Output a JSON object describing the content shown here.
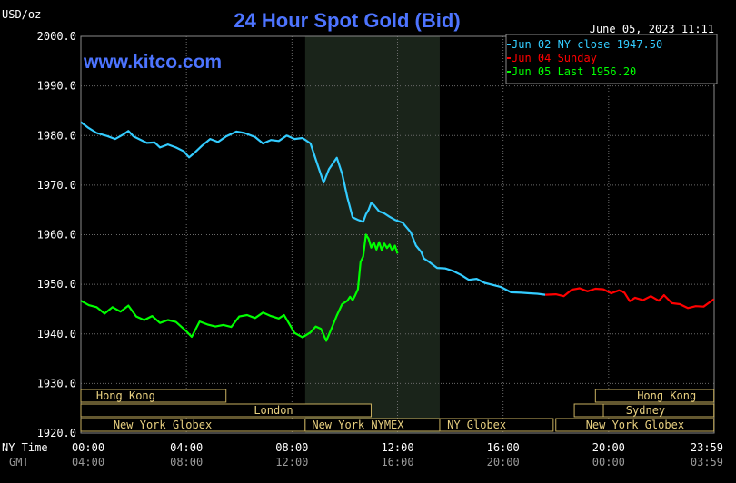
{
  "chart_data": {
    "type": "line",
    "title": "24 Hour Spot Gold (Bid)",
    "ylabel": "USD/oz",
    "datetime": "June 05, 2023 11:11",
    "watermark": "www.kitco.com",
    "ylim": [
      1920,
      2000
    ],
    "yticks": [
      1920,
      1930,
      1940,
      1950,
      1960,
      1970,
      1980,
      1990,
      2000
    ],
    "ytick_labels": [
      "1920.0",
      "1930.0",
      "1940.0",
      "1950.0",
      "1960.0",
      "1970.0",
      "1980.0",
      "1990.0",
      "2000.0"
    ],
    "xlim_hours": [
      0,
      24
    ],
    "xticks_hours": [
      0,
      4,
      8,
      12,
      16,
      20,
      24
    ],
    "x_row_labels": {
      "ny": "NY Time",
      "gmt": "GMT"
    },
    "ny_time_labels": [
      "00:00",
      "04:00",
      "08:00",
      "12:00",
      "16:00",
      "20:00",
      "23:59"
    ],
    "gmt_labels": [
      "04:00",
      "08:00",
      "12:00",
      "16:00",
      "20:00",
      "00:00",
      "03:59"
    ],
    "grid": true,
    "legend": {
      "position": "top-right",
      "entries": [
        {
          "label": "Jun 02 NY close 1947.50",
          "color": "#33ccff"
        },
        {
          "label": "Jun 04 Sunday",
          "color": "#ff0000"
        },
        {
          "label": "Jun 05 Last 1956.20",
          "color": "#00ff00"
        }
      ]
    },
    "shaded_session_hours": [
      8.5,
      13.6
    ],
    "sessions": [
      {
        "label": "Hong Kong",
        "segments": [
          [
            0,
            5.5
          ],
          [
            19.5,
            23.99
          ]
        ],
        "label_at": [
          1.7,
          22.2
        ],
        "row": 0
      },
      {
        "label": "London",
        "segments": [
          [
            0,
            11.0
          ],
          [
            18.7,
            23.99
          ]
        ],
        "label_at": [
          7.3
        ],
        "row": 1
      },
      {
        "label": "New York Globex",
        "segments": [
          [
            0,
            8.5
          ],
          [
            18.0,
            23.99
          ]
        ],
        "label_at": [
          3.1,
          21.0
        ],
        "row": 2
      },
      {
        "label": "New York NYMEX",
        "segments": [
          [
            8.5,
            13.6
          ]
        ],
        "label_at": [
          10.5
        ],
        "row": 2
      },
      {
        "label": "NY Globex",
        "segments": [
          [
            13.6,
            17.9
          ]
        ],
        "label_at": [
          15.0
        ],
        "row": 2
      },
      {
        "label": "Sydney",
        "segments": [
          [
            19.8,
            23.99
          ]
        ],
        "label_at": [
          21.4
        ],
        "row": 1
      }
    ],
    "series": [
      {
        "name": "Jun 02 NY close 1947.50",
        "color": "#33ccff",
        "x": [
          0,
          0.3,
          0.6,
          1.0,
          1.3,
          1.6,
          1.8,
          2.0,
          2.2,
          2.5,
          2.8,
          3.0,
          3.3,
          3.6,
          3.9,
          4.1,
          4.3,
          4.6,
          4.9,
          5.2,
          5.5,
          5.9,
          6.2,
          6.6,
          6.9,
          7.2,
          7.5,
          7.8,
          8.1,
          8.4,
          8.7,
          8.9,
          9.0,
          9.2,
          9.4,
          9.7,
          9.9,
          10.1,
          10.3,
          10.5,
          10.7,
          10.8,
          10.9,
          11.0,
          11.1,
          11.3,
          11.5,
          11.7,
          11.9,
          12.2,
          12.5,
          12.7,
          12.9,
          13.0,
          13.2,
          13.5,
          13.8,
          14.1,
          14.4,
          14.7,
          15.0,
          15.3,
          15.6,
          15.9,
          16.3,
          16.7,
          17.0,
          17.3,
          17.6
        ],
        "y": [
          1982.7,
          1981.5,
          1980.5,
          1979.9,
          1979.3,
          1980.2,
          1980.9,
          1979.8,
          1979.3,
          1978.5,
          1978.6,
          1977.6,
          1978.2,
          1977.6,
          1976.8,
          1975.6,
          1976.5,
          1978.0,
          1979.3,
          1978.7,
          1979.8,
          1980.8,
          1980.5,
          1979.7,
          1978.4,
          1979.1,
          1978.9,
          1980.0,
          1979.3,
          1979.5,
          1978.4,
          1975.2,
          1973.6,
          1970.5,
          1973.2,
          1975.5,
          1972.3,
          1967.5,
          1963.5,
          1963.0,
          1962.6,
          1964.1,
          1965.0,
          1966.4,
          1966.0,
          1964.7,
          1964.3,
          1963.6,
          1963.0,
          1962.4,
          1960.5,
          1957.8,
          1956.5,
          1955.2,
          1954.5,
          1953.3,
          1953.2,
          1952.7,
          1951.9,
          1950.9,
          1951.1,
          1950.3,
          1949.9,
          1949.5,
          1948.4,
          1948.3,
          1948.2,
          1948.1,
          1947.9
        ]
      },
      {
        "name": "Jun 04 Sunday",
        "color": "#ff0000",
        "x": [
          17.6,
          18.0,
          18.3,
          18.6,
          18.9,
          19.2,
          19.5,
          19.8,
          20.1,
          20.4,
          20.6,
          20.8,
          21.0,
          21.3,
          21.6,
          21.9,
          22.1,
          22.4,
          22.7,
          23.0,
          23.3,
          23.6,
          23.99
        ],
        "y": [
          1947.9,
          1948.0,
          1947.6,
          1948.9,
          1949.2,
          1948.6,
          1949.1,
          1949.0,
          1948.2,
          1948.8,
          1948.3,
          1946.6,
          1947.3,
          1946.8,
          1947.6,
          1946.7,
          1947.8,
          1946.2,
          1946.0,
          1945.2,
          1945.6,
          1945.5,
          1947.0
        ]
      },
      {
        "name": "Jun 05 Last 1956.20",
        "color": "#00ff00",
        "x": [
          0,
          0.3,
          0.6,
          0.9,
          1.2,
          1.5,
          1.8,
          2.1,
          2.4,
          2.7,
          3.0,
          3.3,
          3.6,
          3.9,
          4.0,
          4.2,
          4.5,
          4.8,
          5.1,
          5.4,
          5.7,
          6.0,
          6.3,
          6.6,
          6.9,
          7.2,
          7.5,
          7.7,
          7.9,
          8.1,
          8.4,
          8.7,
          8.9,
          9.1,
          9.3,
          9.5,
          9.7,
          9.9,
          10.1,
          10.2,
          10.3,
          10.4,
          10.5,
          10.6,
          10.7,
          10.8,
          10.9,
          11.0,
          11.1,
          11.2,
          11.3,
          11.4,
          11.5,
          11.6,
          11.7,
          11.8,
          11.9,
          12.0
        ],
        "y": [
          1946.7,
          1945.8,
          1945.4,
          1944.1,
          1945.4,
          1944.5,
          1945.7,
          1943.5,
          1942.8,
          1943.6,
          1942.2,
          1942.8,
          1942.4,
          1941.0,
          1940.5,
          1939.4,
          1942.5,
          1941.9,
          1941.5,
          1941.8,
          1941.4,
          1943.5,
          1943.8,
          1943.2,
          1944.3,
          1943.6,
          1943.1,
          1943.8,
          1942.0,
          1940.2,
          1939.3,
          1940.3,
          1941.5,
          1941.0,
          1938.6,
          1941.1,
          1943.7,
          1946.0,
          1946.7,
          1947.5,
          1946.8,
          1947.8,
          1949.0,
          1954.5,
          1955.6,
          1960.0,
          1959.2,
          1957.4,
          1958.4,
          1957.0,
          1958.5,
          1956.9,
          1958.2,
          1957.3,
          1958.0,
          1956.8,
          1957.8,
          1956.2
        ]
      }
    ]
  }
}
